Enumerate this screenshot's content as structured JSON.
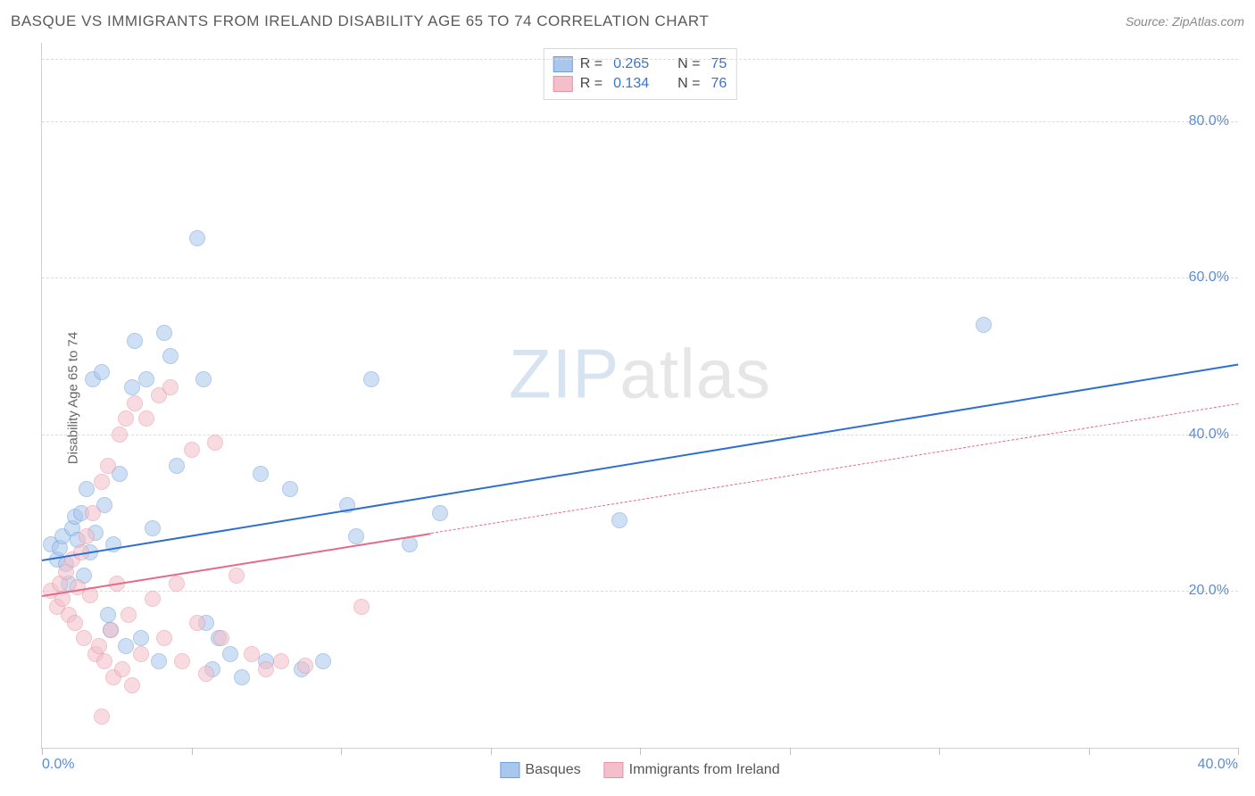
{
  "title": "BASQUE VS IMMIGRANTS FROM IRELAND DISABILITY AGE 65 TO 74 CORRELATION CHART",
  "source": "Source: ZipAtlas.com",
  "ylabel": "Disability Age 65 to 74",
  "watermark_a": "ZIP",
  "watermark_b": "atlas",
  "chart": {
    "type": "scatter",
    "xlim": [
      0,
      40
    ],
    "ylim": [
      0,
      90
    ],
    "x_ticks": [
      0,
      5,
      10,
      15,
      20,
      25,
      30,
      35,
      40
    ],
    "x_tick_labels": {
      "0": "0.0%",
      "40": "40.0%"
    },
    "y_ticks": [
      20,
      40,
      60,
      80
    ],
    "y_tick_labels": {
      "20": "20.0%",
      "40": "40.0%",
      "60": "60.0%",
      "80": "80.0%"
    },
    "background_color": "#ffffff",
    "grid_color": "#dcdcdc",
    "axis_color": "#d0d0d0",
    "ytick_label_color": "#5b8dd6",
    "series": [
      {
        "key": "basques",
        "label": "Basques",
        "fill": "#a9c6ec",
        "stroke": "#6f9fdd",
        "R": "0.265",
        "N": "75",
        "trend": {
          "x0": 0,
          "y0": 24,
          "x1": 40,
          "y1": 49,
          "solid_until_x": 40,
          "color": "#2f6fd0",
          "width": 2
        },
        "points": [
          [
            0.3,
            26
          ],
          [
            0.5,
            24
          ],
          [
            0.6,
            25.5
          ],
          [
            0.7,
            27
          ],
          [
            0.8,
            23.5
          ],
          [
            0.9,
            21
          ],
          [
            1.0,
            28
          ],
          [
            1.1,
            29.5
          ],
          [
            1.2,
            26.5
          ],
          [
            1.3,
            30
          ],
          [
            1.4,
            22
          ],
          [
            1.5,
            33
          ],
          [
            1.6,
            25
          ],
          [
            1.7,
            47
          ],
          [
            1.8,
            27.5
          ],
          [
            2.0,
            48
          ],
          [
            2.1,
            31
          ],
          [
            2.2,
            17
          ],
          [
            2.3,
            15
          ],
          [
            2.4,
            26
          ],
          [
            2.6,
            35
          ],
          [
            2.8,
            13
          ],
          [
            3.0,
            46
          ],
          [
            3.1,
            52
          ],
          [
            3.3,
            14
          ],
          [
            3.5,
            47
          ],
          [
            3.7,
            28
          ],
          [
            3.9,
            11
          ],
          [
            4.1,
            53
          ],
          [
            4.3,
            50
          ],
          [
            4.5,
            36
          ],
          [
            5.2,
            65
          ],
          [
            5.4,
            47
          ],
          [
            5.5,
            16
          ],
          [
            5.7,
            10
          ],
          [
            5.9,
            14
          ],
          [
            6.3,
            12
          ],
          [
            6.7,
            9
          ],
          [
            7.3,
            35
          ],
          [
            7.5,
            11
          ],
          [
            8.3,
            33
          ],
          [
            8.7,
            10
          ],
          [
            9.4,
            11
          ],
          [
            10.2,
            31
          ],
          [
            10.5,
            27
          ],
          [
            11.0,
            47
          ],
          [
            12.3,
            26
          ],
          [
            13.3,
            30
          ],
          [
            19.3,
            29
          ],
          [
            31.5,
            54
          ]
        ]
      },
      {
        "key": "ireland",
        "label": "Immigrants from Ireland",
        "fill": "#f4bfca",
        "stroke": "#e693a4",
        "R": "0.134",
        "N": "76",
        "trend": {
          "x0": 0,
          "y0": 19.5,
          "x1": 40,
          "y1": 44,
          "solid_until_x": 13,
          "color": "#e46a87",
          "width": 2
        },
        "points": [
          [
            0.3,
            20
          ],
          [
            0.5,
            18
          ],
          [
            0.6,
            21
          ],
          [
            0.7,
            19
          ],
          [
            0.8,
            22.5
          ],
          [
            0.9,
            17
          ],
          [
            1.0,
            24
          ],
          [
            1.1,
            16
          ],
          [
            1.2,
            20.5
          ],
          [
            1.3,
            25
          ],
          [
            1.4,
            14
          ],
          [
            1.5,
            27
          ],
          [
            1.6,
            19.5
          ],
          [
            1.7,
            30
          ],
          [
            1.8,
            12
          ],
          [
            1.9,
            13
          ],
          [
            2.0,
            34
          ],
          [
            2.1,
            11
          ],
          [
            2.2,
            36
          ],
          [
            2.3,
            15
          ],
          [
            2.4,
            9
          ],
          [
            2.5,
            21
          ],
          [
            2.6,
            40
          ],
          [
            2.7,
            10
          ],
          [
            2.8,
            42
          ],
          [
            2.9,
            17
          ],
          [
            3.0,
            8
          ],
          [
            3.1,
            44
          ],
          [
            3.3,
            12
          ],
          [
            3.5,
            42
          ],
          [
            3.7,
            19
          ],
          [
            3.9,
            45
          ],
          [
            4.1,
            14
          ],
          [
            4.3,
            46
          ],
          [
            4.5,
            21
          ],
          [
            4.7,
            11
          ],
          [
            5.0,
            38
          ],
          [
            5.2,
            16
          ],
          [
            5.5,
            9.5
          ],
          [
            5.8,
            39
          ],
          [
            6.0,
            14
          ],
          [
            6.5,
            22
          ],
          [
            7.0,
            12
          ],
          [
            7.5,
            10
          ],
          [
            8.0,
            11
          ],
          [
            8.8,
            10.5
          ],
          [
            10.7,
            18
          ],
          [
            2.0,
            4
          ]
        ]
      }
    ]
  }
}
